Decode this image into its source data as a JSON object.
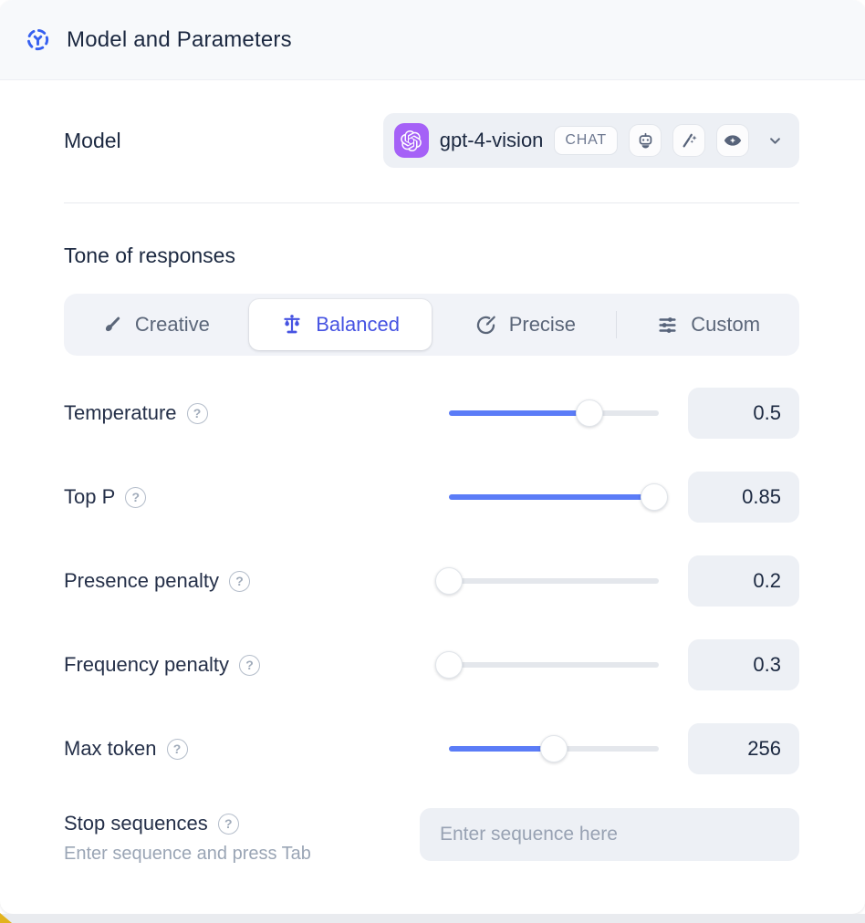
{
  "header": {
    "title": "Model and Parameters"
  },
  "model": {
    "label": "Model",
    "selected_name": "gpt-4-vision",
    "type_badge": "CHAT",
    "capability_icons": [
      "robot-icon",
      "magic-wand-icon",
      "vision-eye-icon"
    ]
  },
  "tone": {
    "label": "Tone of responses",
    "options": [
      {
        "label": "Creative",
        "icon": "paintbrush-icon",
        "selected": false
      },
      {
        "label": "Balanced",
        "icon": "balance-scale-icon",
        "selected": true
      },
      {
        "label": "Precise",
        "icon": "target-arrow-icon",
        "selected": false
      },
      {
        "label": "Custom",
        "icon": "sliders-icon",
        "selected": false
      }
    ]
  },
  "parameters": [
    {
      "label": "Temperature",
      "value": "0.5",
      "fill_pct": 67
    },
    {
      "label": "Top P",
      "value": "0.85",
      "fill_pct": 98
    },
    {
      "label": "Presence penalty",
      "value": "0.2",
      "fill_pct": 0
    },
    {
      "label": "Frequency penalty",
      "value": "0.3",
      "fill_pct": 0
    },
    {
      "label": "Max token",
      "value": "256",
      "fill_pct": 50
    }
  ],
  "stop_sequences": {
    "label": "Stop sequences",
    "hint": "Enter sequence and press Tab",
    "placeholder": "Enter sequence here"
  },
  "icons": {
    "help_glyph": "?"
  },
  "colors": {
    "accent_indigo": "#4653e2",
    "slider_blue": "#5b7cf7",
    "brand_purple": "#a561f7",
    "header_icon_blue": "#3660f0",
    "text_dark": "#1b2840",
    "text_muted": "#5b6679",
    "surface_gray": "#edf0f5",
    "header_bg": "#f7f9fb",
    "corner_yellow": "#e2b31e"
  }
}
